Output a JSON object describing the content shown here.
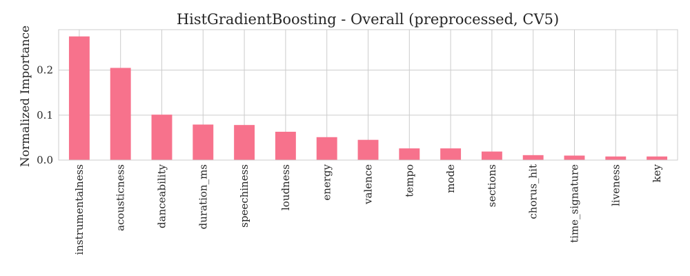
{
  "chart_data": {
    "type": "bar",
    "title": "HistGradientBoosting - Overall (preprocessed, CV5)",
    "xlabel": "",
    "ylabel": "Normalized Importance",
    "categories": [
      "instrumentalness",
      "acousticness",
      "danceability",
      "duration_ms",
      "speechiness",
      "loudness",
      "energy",
      "valence",
      "tempo",
      "mode",
      "sections",
      "chorus_hit",
      "time_signature",
      "liveness",
      "key"
    ],
    "values": [
      0.275,
      0.205,
      0.101,
      0.079,
      0.078,
      0.063,
      0.051,
      0.045,
      0.026,
      0.026,
      0.019,
      0.011,
      0.01,
      0.008,
      0.008
    ],
    "ylim": [
      0,
      0.29
    ],
    "yticks": [
      0.0,
      0.1,
      0.2
    ],
    "ytick_labels": [
      "0.0",
      "0.1",
      "0.2"
    ],
    "grid": true,
    "legend": "none",
    "colors": {
      "bar": "#f7728c",
      "grid": "#cccccc",
      "axis": "#cccccc",
      "text": "#262626"
    }
  }
}
